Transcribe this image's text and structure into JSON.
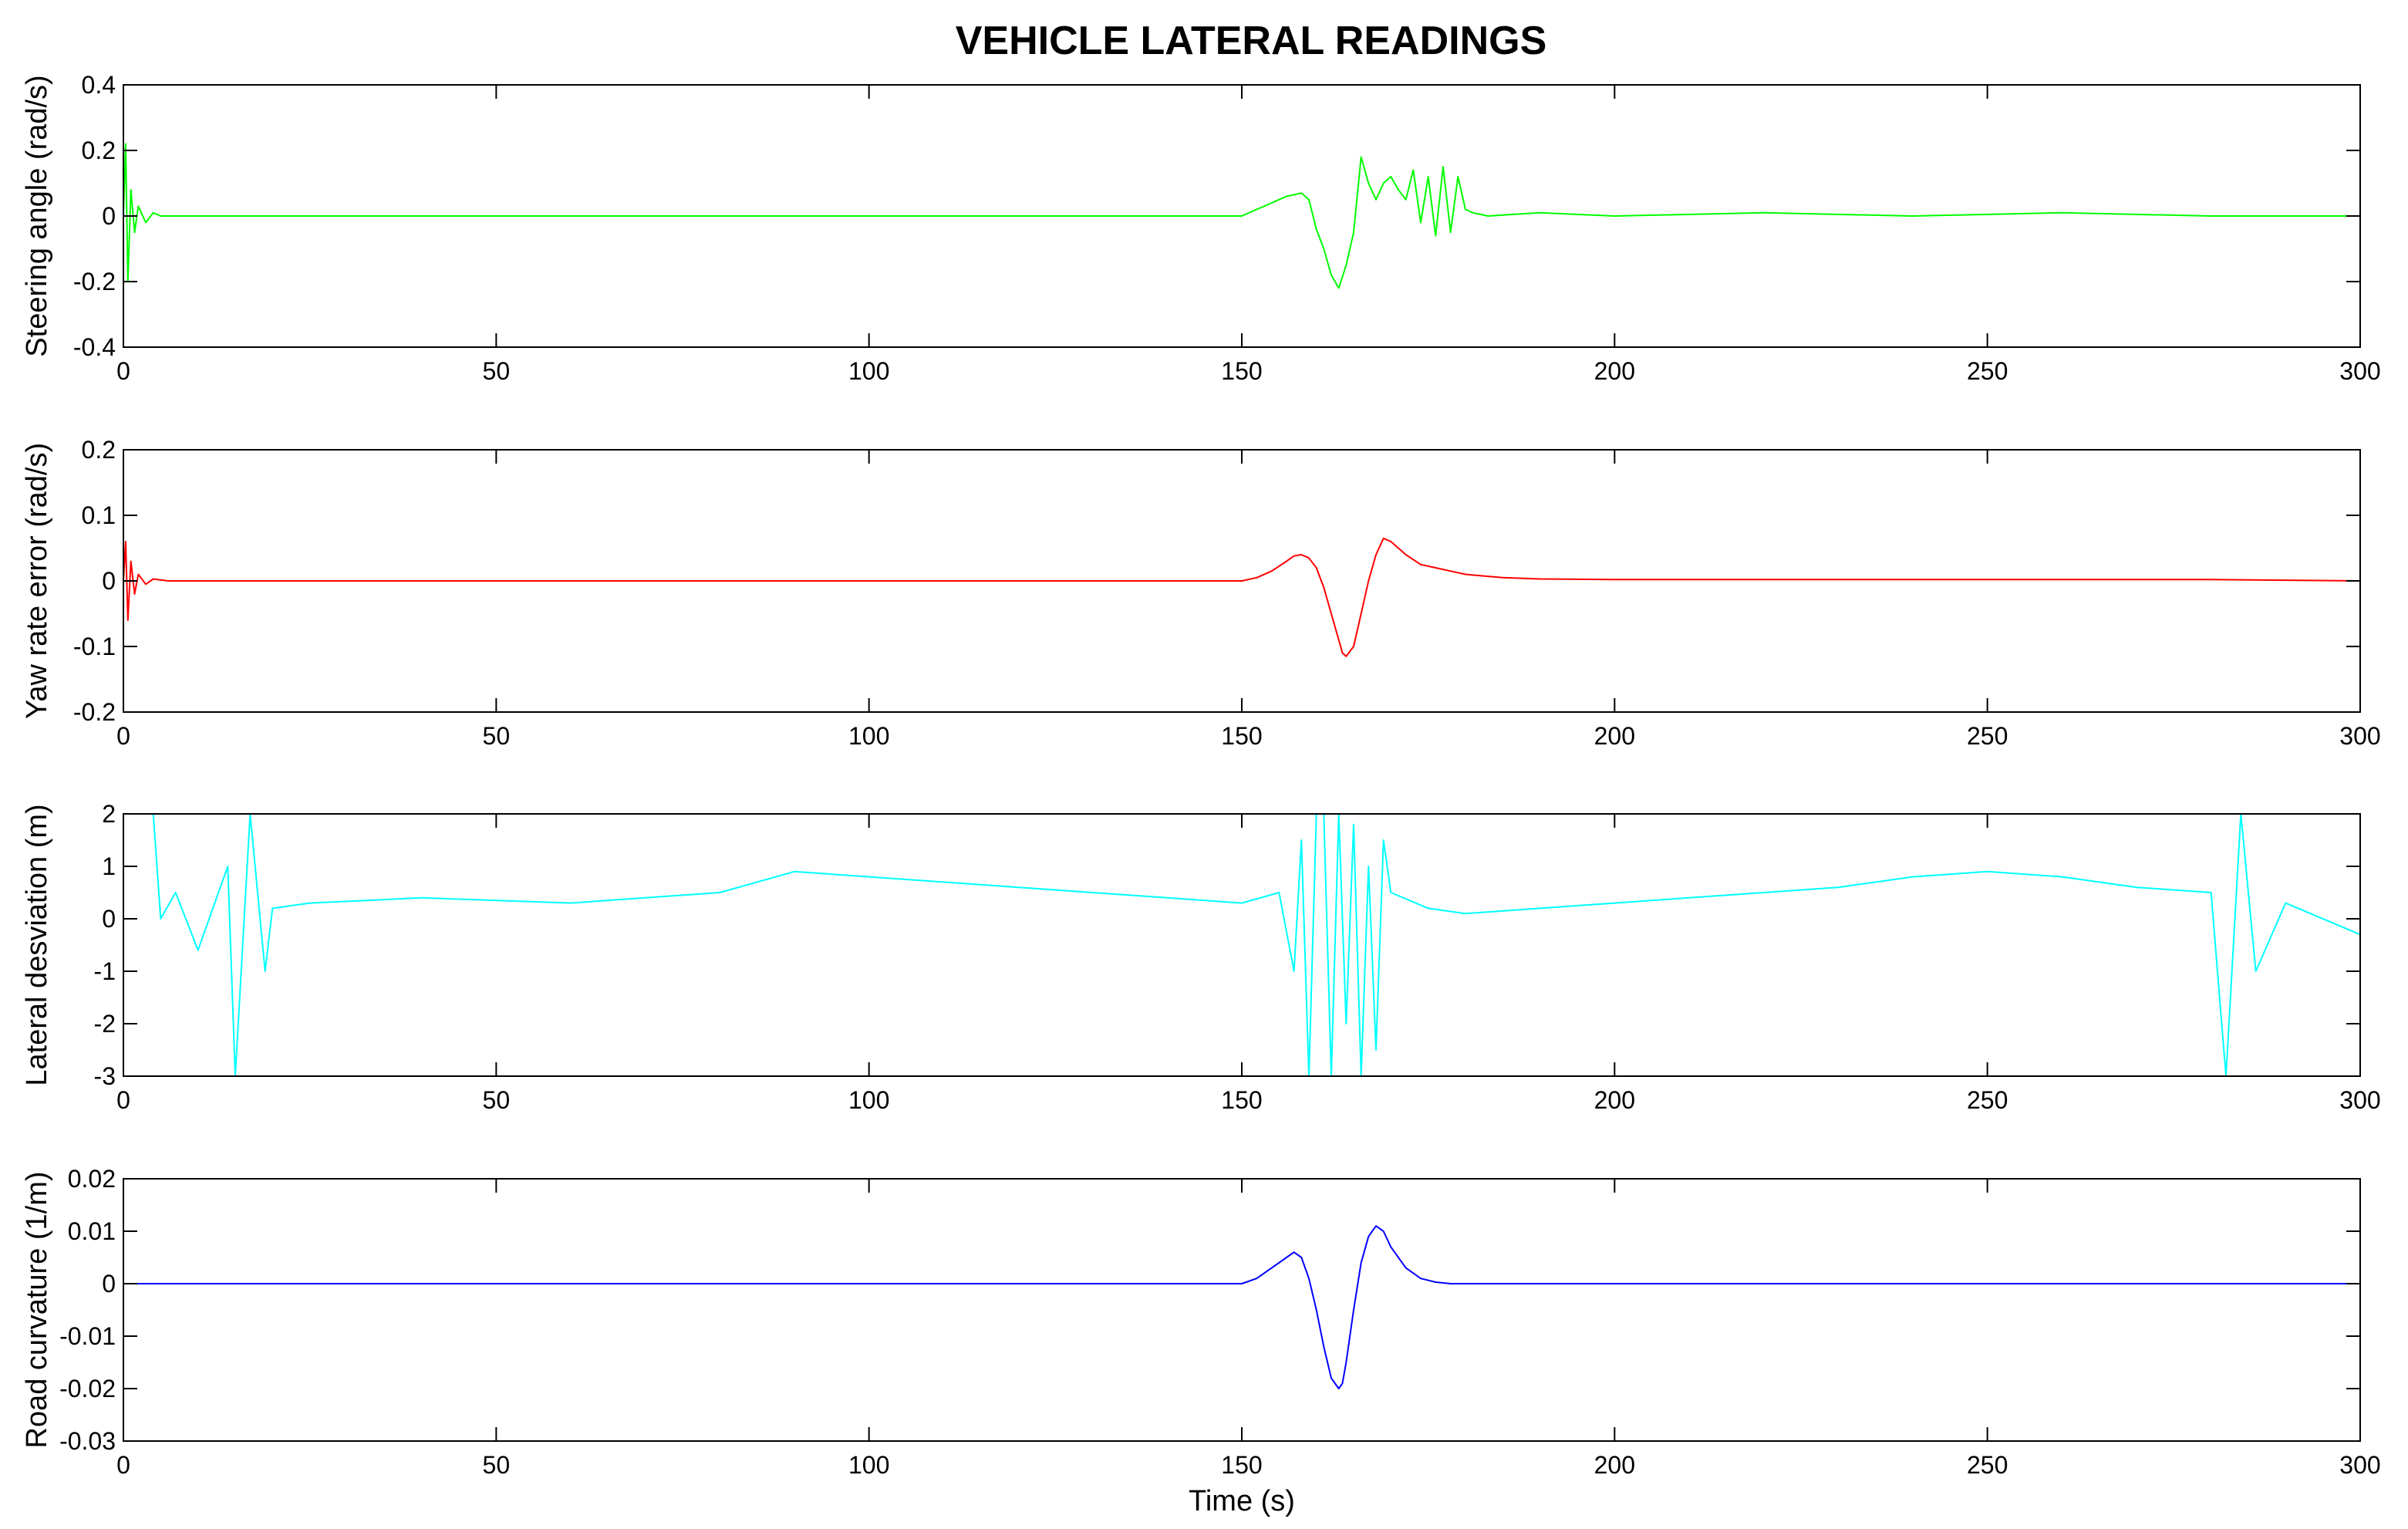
{
  "chart_data": [
    {
      "type": "line",
      "title": "VEHICLE LATERAL READINGS",
      "ylabel": "Steering angle (rad/s)",
      "xlabel": "",
      "xlim": [
        0,
        300
      ],
      "ylim": [
        -0.4,
        0.4
      ],
      "xticks": [
        0,
        50,
        100,
        150,
        200,
        250,
        300
      ],
      "yticks": [
        -0.4,
        -0.2,
        0,
        0.2,
        0.4
      ],
      "ytick_labels": [
        "-0.4",
        "-0.2",
        "0",
        "0.2",
        "0.4"
      ],
      "color": "#00ff00",
      "series": [
        {
          "x": [
            0,
            0.3,
            0.6,
            1,
            1.5,
            2,
            3,
            4,
            5,
            7,
            20,
            40,
            60,
            80,
            100,
            120,
            140,
            150,
            152,
            154,
            156,
            158,
            159,
            160,
            161,
            162,
            163,
            164,
            165,
            166,
            167,
            168,
            169,
            170,
            171,
            172,
            173,
            174,
            175,
            176,
            177,
            178,
            179,
            180,
            181,
            183,
            190,
            200,
            220,
            240,
            260,
            280,
            300
          ],
          "y": [
            0,
            0.22,
            -0.2,
            0.08,
            -0.05,
            0.03,
            -0.02,
            0.01,
            0,
            0,
            0,
            0,
            0,
            0,
            0,
            0,
            0,
            0,
            0.02,
            0.04,
            0.06,
            0.07,
            0.05,
            -0.04,
            -0.1,
            -0.18,
            -0.22,
            -0.15,
            -0.05,
            0.18,
            0.1,
            0.05,
            0.1,
            0.12,
            0.08,
            0.05,
            0.14,
            -0.02,
            0.12,
            -0.06,
            0.15,
            -0.05,
            0.12,
            0.02,
            0.01,
            0,
            0.01,
            0,
            0.01,
            0,
            0.01,
            0,
            0
          ]
        }
      ]
    },
    {
      "type": "line",
      "ylabel": "Yaw rate error (rad/s)",
      "xlabel": "",
      "xlim": [
        0,
        300
      ],
      "ylim": [
        -0.2,
        0.2
      ],
      "xticks": [
        0,
        50,
        100,
        150,
        200,
        250,
        300
      ],
      "yticks": [
        -0.2,
        -0.1,
        0,
        0.1,
        0.2
      ],
      "ytick_labels": [
        "-0.2",
        "-0.1",
        "0",
        "0.1",
        "0.2"
      ],
      "color": "#ff0000",
      "series": [
        {
          "x": [
            0,
            0.3,
            0.6,
            1,
            1.5,
            2,
            3,
            4,
            6,
            8,
            50,
            100,
            150,
            152,
            154,
            156,
            157,
            158,
            159,
            160,
            161,
            162,
            163,
            163.5,
            164,
            165,
            166,
            167,
            168,
            169,
            170,
            172,
            174,
            176,
            178,
            180,
            185,
            190,
            200,
            220,
            240,
            260,
            280,
            300
          ],
          "y": [
            0,
            0.06,
            -0.06,
            0.03,
            -0.02,
            0.01,
            -0.005,
            0.003,
            0,
            0,
            0,
            0,
            0,
            0.005,
            0.015,
            0.03,
            0.038,
            0.04,
            0.035,
            0.02,
            -0.01,
            -0.05,
            -0.09,
            -0.11,
            -0.115,
            -0.1,
            -0.05,
            0,
            0.04,
            0.065,
            0.06,
            0.04,
            0.025,
            0.02,
            0.015,
            0.01,
            0.005,
            0.003,
            0.002,
            0.002,
            0.002,
            0.002,
            0.002,
            0
          ]
        }
      ]
    },
    {
      "type": "line",
      "ylabel": "Lateral desviation (m)",
      "xlabel": "",
      "xlim": [
        0,
        300
      ],
      "ylim": [
        -3,
        2
      ],
      "xticks": [
        0,
        50,
        100,
        150,
        200,
        250,
        300
      ],
      "yticks": [
        -3,
        -2,
        -1,
        0,
        1,
        2
      ],
      "ytick_labels": [
        "-3",
        "-2",
        "-1",
        "0",
        "1",
        "2"
      ],
      "color": "#00ffff",
      "series": [
        {
          "x": [
            0,
            4,
            5,
            7,
            10,
            14,
            15,
            17,
            19,
            20,
            25,
            40,
            60,
            80,
            90,
            100,
            120,
            140,
            150,
            155,
            157,
            158,
            159,
            160,
            161,
            162,
            163,
            164,
            165,
            166,
            167,
            168,
            169,
            170,
            175,
            180,
            190,
            200,
            210,
            220,
            230,
            240,
            250,
            260,
            270,
            280,
            282,
            284,
            286,
            290,
            300
          ],
          "y": [
            2,
            2,
            0,
            0.5,
            -0.6,
            1,
            -3,
            2,
            -1,
            0.2,
            0.3,
            0.4,
            0.3,
            0.5,
            0.9,
            0.8,
            0.6,
            0.4,
            0.3,
            0.5,
            -1,
            1.5,
            -3,
            2,
            2,
            -3,
            2,
            -2,
            1.8,
            -3,
            1,
            -2.5,
            1.5,
            0.5,
            0.2,
            0.1,
            0.2,
            0.3,
            0.4,
            0.5,
            0.6,
            0.8,
            0.9,
            0.8,
            0.6,
            0.5,
            -3,
            2,
            -1,
            0.3,
            -0.3
          ]
        }
      ]
    },
    {
      "type": "line",
      "ylabel": "Road curvature (1/m)",
      "xlabel": "Time (s)",
      "xlim": [
        0,
        300
      ],
      "ylim": [
        -0.03,
        0.02
      ],
      "xticks": [
        0,
        50,
        100,
        150,
        200,
        250,
        300
      ],
      "yticks": [
        -0.03,
        -0.02,
        -0.01,
        0,
        0.01,
        0.02
      ],
      "ytick_labels": [
        "-0.03",
        "-0.02",
        "-0.01",
        "0",
        "0.01",
        "0.02"
      ],
      "color": "#0000ff",
      "series": [
        {
          "x": [
            0,
            150,
            152,
            154,
            156,
            157,
            158,
            159,
            160,
            161,
            162,
            163,
            163.5,
            164,
            165,
            166,
            167,
            168,
            169,
            170,
            172,
            174,
            176,
            178,
            300
          ],
          "y": [
            0,
            0,
            0.001,
            0.003,
            0.005,
            0.006,
            0.005,
            0.001,
            -0.005,
            -0.012,
            -0.018,
            -0.02,
            -0.019,
            -0.015,
            -0.005,
            0.004,
            0.009,
            0.011,
            0.01,
            0.007,
            0.003,
            0.001,
            0.0003,
            0,
            0
          ]
        }
      ]
    }
  ]
}
